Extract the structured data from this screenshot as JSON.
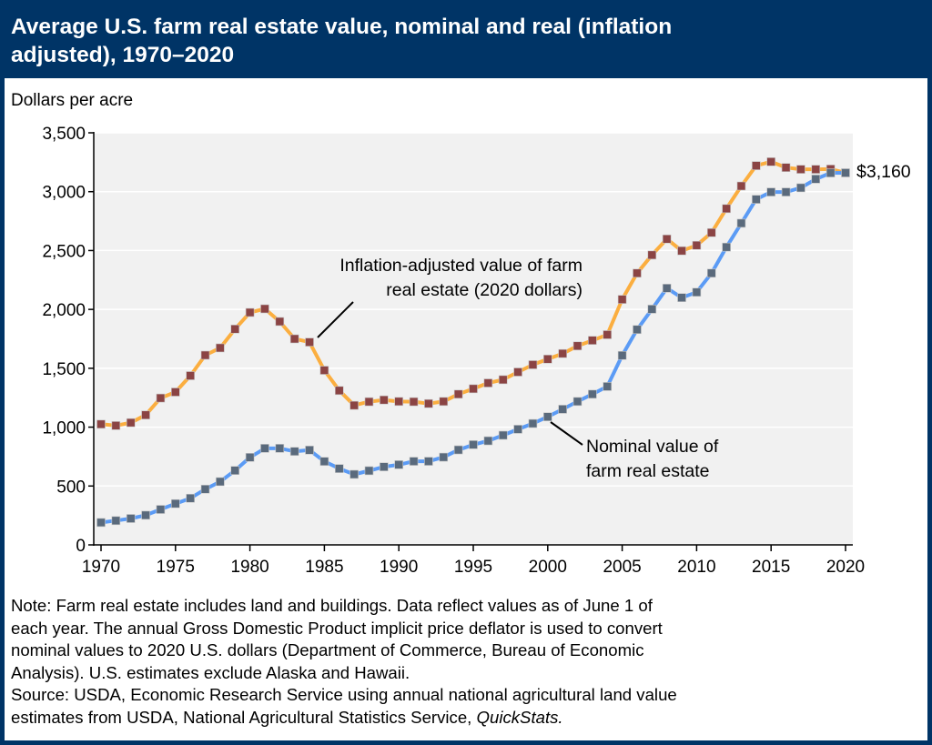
{
  "header": {
    "title_line1": "Average U.S. farm real estate value, nominal and real (inflation",
    "title_line2": "adjusted), 1970–2020"
  },
  "notes": {
    "line1": "Note: Farm real estate includes land and buildings. Data reflect values as of June 1 of",
    "line2": "each year. The annual Gross Domestic Product implicit price deflator is used to convert",
    "line3": "nominal values to 2020 U.S. dollars (Department of Commerce, Bureau of Economic",
    "line4": "Analysis). U.S. estimates exclude Alaska and Hawaii.",
    "source_line1": "Source: USDA, Economic Research Service using annual national agricultural land value",
    "source_line2_prefix": "estimates from USDA, National Agricultural Statistics Service, ",
    "source_line2_italic": "QuickStats."
  },
  "colors": {
    "header_bg": "#003466",
    "plot_bg": "#f1f1f1",
    "real_line": "#fbae3f",
    "real_marker": "#8b4444",
    "nominal_line": "#5b9bf5",
    "nominal_marker": "#5a6a7c"
  },
  "chart_data": {
    "type": "line",
    "title": "Average U.S. farm real estate value, nominal and real (inflation adjusted), 1970–2020",
    "xlabel": "",
    "ylabel": "Dollars per acre",
    "xlim": [
      1970,
      2020
    ],
    "ylim": [
      0,
      3500
    ],
    "grid": true,
    "legend": "inline annotations",
    "x_ticks": [
      "1970",
      "1975",
      "1980",
      "1985",
      "1990",
      "1995",
      "2000",
      "2005",
      "2010",
      "2015",
      "2020"
    ],
    "y_ticks": [
      "0",
      "500",
      "1,000",
      "1,500",
      "2,000",
      "2,500",
      "3,000",
      "3,500"
    ],
    "y_tick_values": [
      0,
      500,
      1000,
      1500,
      2000,
      2500,
      3000,
      3500
    ],
    "x": [
      1970,
      1971,
      1972,
      1973,
      1974,
      1975,
      1976,
      1977,
      1978,
      1979,
      1980,
      1981,
      1982,
      1983,
      1984,
      1985,
      1986,
      1987,
      1988,
      1989,
      1990,
      1991,
      1992,
      1993,
      1994,
      1995,
      1996,
      1997,
      1998,
      1999,
      2000,
      2001,
      2002,
      2003,
      2004,
      2005,
      2006,
      2007,
      2008,
      2009,
      2010,
      2011,
      2012,
      2013,
      2014,
      2015,
      2016,
      2017,
      2018,
      2019,
      2020
    ],
    "series": [
      {
        "name": "Inflation-adjusted value of farm real estate (2020 dollars)",
        "values": [
          1025,
          1013,
          1038,
          1103,
          1247,
          1298,
          1437,
          1611,
          1673,
          1833,
          1974,
          2005,
          1897,
          1750,
          1722,
          1483,
          1311,
          1185,
          1216,
          1231,
          1218,
          1216,
          1200,
          1218,
          1280,
          1326,
          1375,
          1403,
          1468,
          1530,
          1578,
          1625,
          1690,
          1737,
          1785,
          2085,
          2308,
          2462,
          2598,
          2498,
          2544,
          2652,
          2856,
          3048,
          3221,
          3254,
          3205,
          3190,
          3190,
          3192,
          3160
        ]
      },
      {
        "name": "Nominal value of farm real estate",
        "values": [
          190,
          206,
          224,
          252,
          301,
          350,
          396,
          473,
          537,
          632,
          743,
          820,
          820,
          794,
          805,
          709,
          648,
          599,
          630,
          663,
          681,
          710,
          710,
          745,
          807,
          851,
          884,
          931,
          982,
          1031,
          1088,
          1152,
          1218,
          1280,
          1345,
          1609,
          1829,
          2002,
          2180,
          2100,
          2146,
          2308,
          2529,
          2732,
          2935,
          2997,
          2997,
          3033,
          3107,
          3159,
          3160
        ]
      }
    ],
    "annotations": {
      "real_label_line1": "Inflation-adjusted value of farm",
      "real_label_line2": "real estate (2020 dollars)",
      "nominal_label_line1": "Nominal value of",
      "nominal_label_line2": "farm real estate",
      "end_value_label": "$3,160"
    }
  }
}
